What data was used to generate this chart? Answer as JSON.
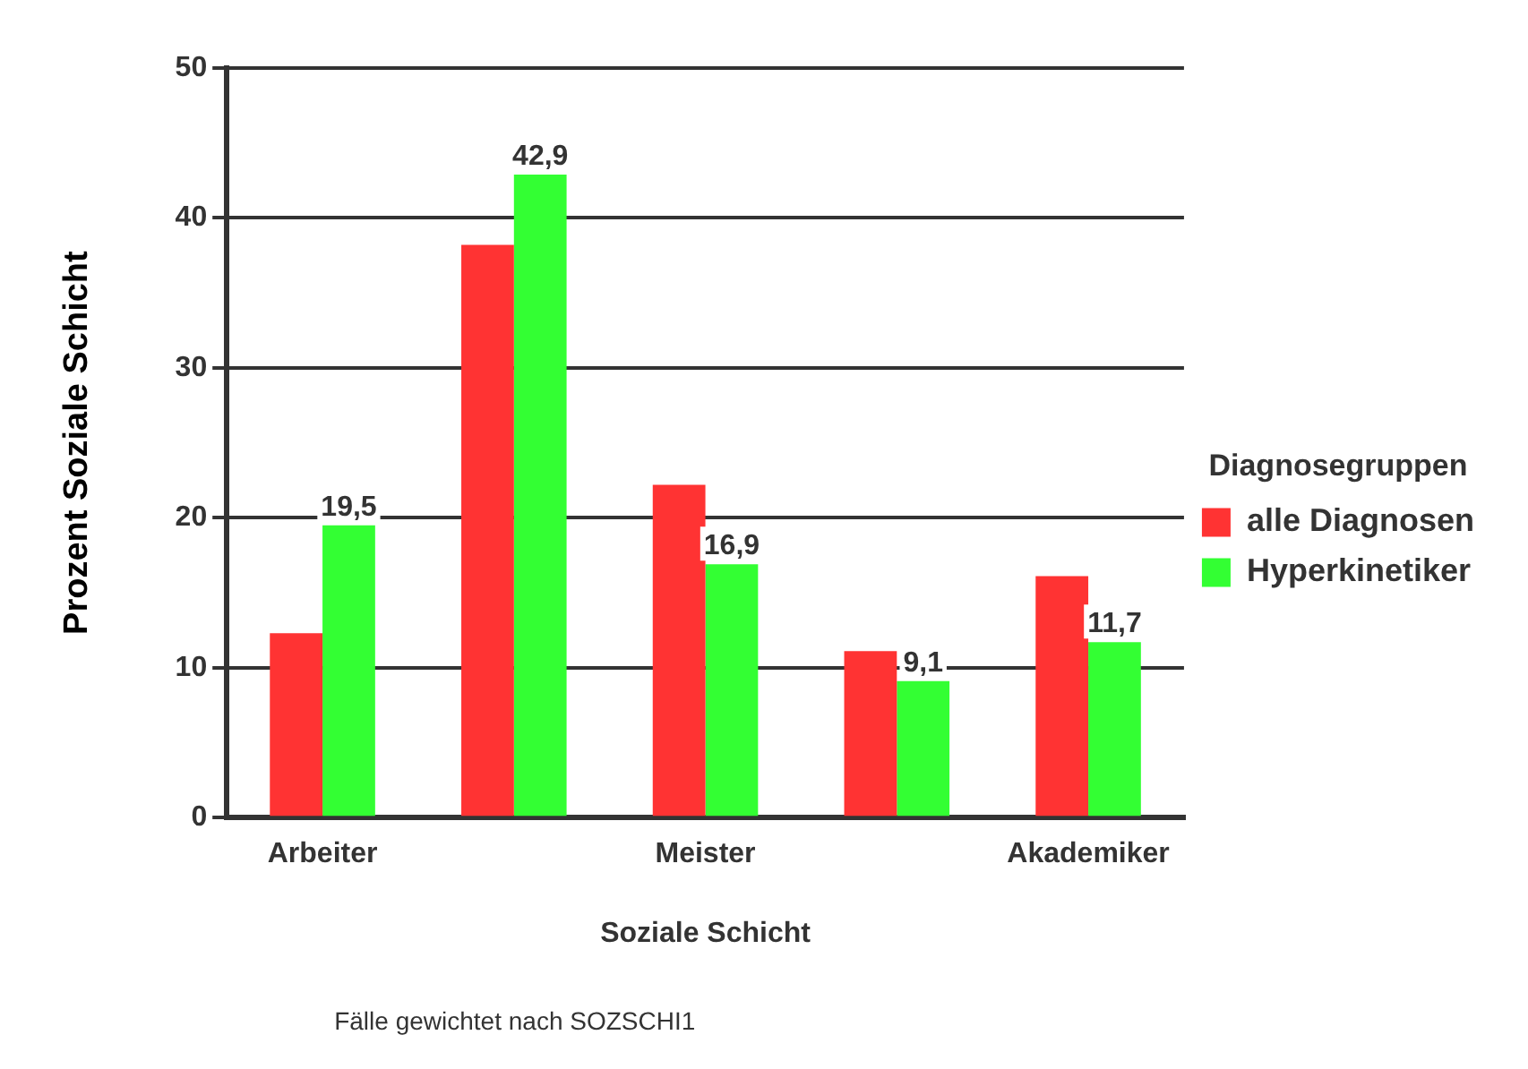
{
  "chart_data": {
    "type": "bar",
    "categories": [
      "Arbeiter",
      null,
      "Meister",
      null,
      "Akademiker"
    ],
    "series": [
      {
        "name": "alle Diagnosen",
        "color": "#ff3333",
        "values": [
          12.3,
          38.2,
          22.2,
          11.1,
          16.1
        ]
      },
      {
        "name": "Hyperkinetiker",
        "color": "#33ff33",
        "values": [
          19.5,
          42.9,
          16.9,
          9.1,
          11.7
        ],
        "value_labels": [
          "19,5",
          "42,9",
          "16,9",
          "9,1",
          "11,7"
        ]
      }
    ],
    "xlabel": "Soziale Schicht",
    "ylabel": "Prozent Soziale Schicht",
    "legend_title": "Diagnosegruppen",
    "annotations": [
      "Fälle gewichtet nach SOZSCHI1"
    ],
    "ylim": [
      0,
      50
    ],
    "yticks": [
      0,
      10,
      20,
      30,
      40,
      50
    ],
    "grid": "y",
    "legend": "right"
  }
}
